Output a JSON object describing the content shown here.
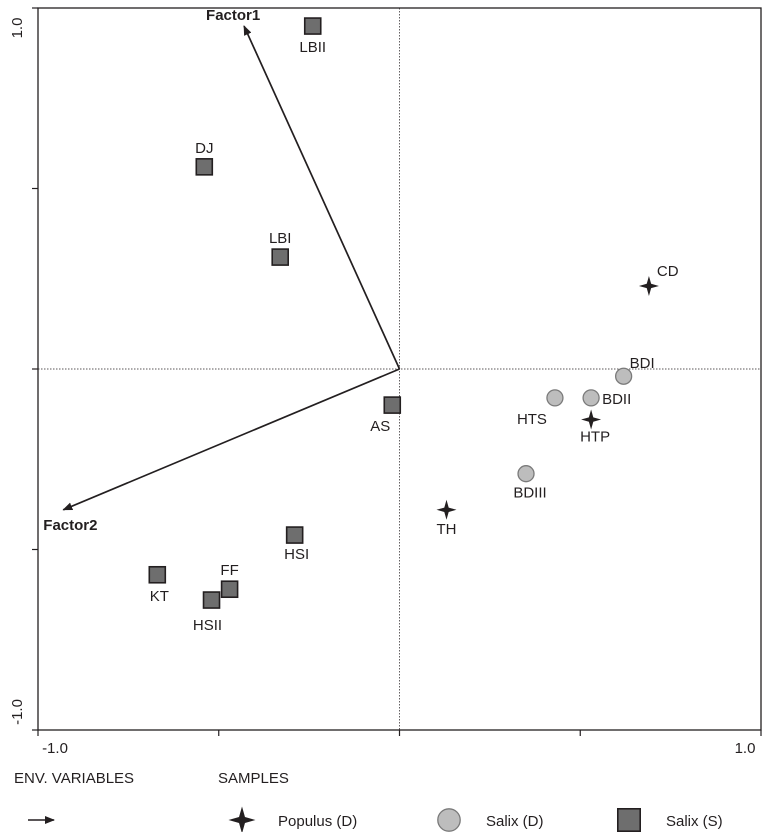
{
  "chart_data": {
    "type": "scatter",
    "title": "",
    "xlabel": "",
    "ylabel": "",
    "xlim": [
      -1.0,
      1.0
    ],
    "ylim": [
      -1.0,
      1.0
    ],
    "x_ticks": [
      "-1.0",
      "1.0"
    ],
    "y_ticks": [
      "1.0",
      "-1.0"
    ],
    "grid": false,
    "vectors": [
      {
        "name": "Factor1",
        "x": -0.43,
        "y": 0.95
      },
      {
        "name": "Factor2",
        "x": -0.93,
        "y": -0.39
      }
    ],
    "series": [
      {
        "name": "Populus (D)",
        "marker": "star",
        "color": "#231f20",
        "points": [
          {
            "label": "CD",
            "x": 0.69,
            "y": 0.23
          },
          {
            "label": "HTP",
            "x": 0.53,
            "y": -0.14
          },
          {
            "label": "TH",
            "x": 0.13,
            "y": -0.39
          }
        ]
      },
      {
        "name": "Salix (D)",
        "marker": "circle",
        "color": "#bdbdbd",
        "points": [
          {
            "label": "BDI",
            "x": 0.62,
            "y": -0.02
          },
          {
            "label": "BDII",
            "x": 0.53,
            "y": -0.08
          },
          {
            "label": "HTS",
            "x": 0.43,
            "y": -0.08
          },
          {
            "label": "BDIII",
            "x": 0.35,
            "y": -0.29
          }
        ]
      },
      {
        "name": "Salix (S)",
        "marker": "square",
        "color": "#6e6e6e",
        "points": [
          {
            "label": "LBII",
            "x": -0.24,
            "y": 0.95
          },
          {
            "label": "DJ",
            "x": -0.54,
            "y": 0.56
          },
          {
            "label": "LBI",
            "x": -0.33,
            "y": 0.31
          },
          {
            "label": "AS",
            "x": -0.02,
            "y": -0.1
          },
          {
            "label": "HSI",
            "x": -0.29,
            "y": -0.46
          },
          {
            "label": "KT",
            "x": -0.67,
            "y": -0.57
          },
          {
            "label": "FF",
            "x": -0.47,
            "y": -0.61
          },
          {
            "label": "HSII",
            "x": -0.52,
            "y": -0.64
          }
        ]
      }
    ]
  },
  "legend": {
    "env_title": "ENV. VARIABLES",
    "samples_title": "SAMPLES"
  }
}
